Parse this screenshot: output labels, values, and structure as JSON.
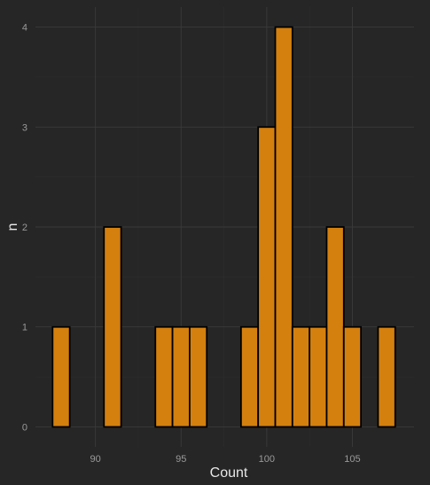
{
  "chart_data": {
    "type": "bar",
    "xlabel": "Count",
    "ylabel": "n",
    "xlim": [
      86.5,
      108.6
    ],
    "ylim": [
      -0.2,
      4.2
    ],
    "x_ticks": [
      90,
      95,
      100,
      105
    ],
    "y_ticks": [
      0,
      1,
      2,
      3,
      4
    ],
    "bin_width": 1,
    "grid": true,
    "x": [
      88,
      91,
      94,
      95,
      96,
      99,
      100,
      101,
      102,
      103,
      104,
      105,
      107
    ],
    "values": [
      1,
      2,
      1,
      1,
      1,
      1,
      3,
      4,
      1,
      1,
      2,
      1,
      1
    ]
  },
  "colors": {
    "background": "#262626",
    "bar_fill": "#D4800F",
    "bar_outline": "#000000",
    "grid": "#3a3a3a"
  }
}
